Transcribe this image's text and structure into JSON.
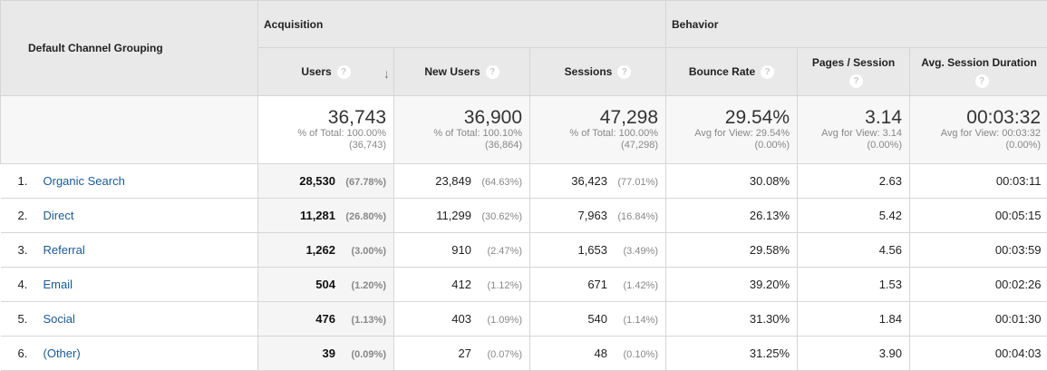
{
  "header": {
    "dimension": "Default Channel Grouping",
    "groups": [
      "Acquisition",
      "Behavior"
    ],
    "metrics": [
      "Users",
      "New Users",
      "Sessions",
      "Bounce Rate",
      "Pages / Session",
      "Avg. Session Duration"
    ],
    "help_icon": "?",
    "sort_icon": "↓"
  },
  "summary": [
    {
      "value": "36,743",
      "line1": "% of Total: 100.00%",
      "line2": "(36,743)"
    },
    {
      "value": "36,900",
      "line1": "% of Total: 100.10%",
      "line2": "(36,864)"
    },
    {
      "value": "47,298",
      "line1": "% of Total: 100.00%",
      "line2": "(47,298)"
    },
    {
      "value": "29.54%",
      "line1": "Avg for View: 29.54%",
      "line2": "(0.00%)"
    },
    {
      "value": "3.14",
      "line1": "Avg for View: 3.14",
      "line2": "(0.00%)"
    },
    {
      "value": "00:03:32",
      "line1": "Avg for View: 00:03:32",
      "line2": "(0.00%)"
    }
  ],
  "rows": [
    {
      "idx": "1.",
      "name": "Organic Search",
      "users": "28,530",
      "users_pct": "(67.78%)",
      "new": "23,849",
      "new_pct": "(64.63%)",
      "sessions": "36,423",
      "sessions_pct": "(77.01%)",
      "bounce": "30.08%",
      "pps": "2.63",
      "dur": "00:03:11"
    },
    {
      "idx": "2.",
      "name": "Direct",
      "users": "11,281",
      "users_pct": "(26.80%)",
      "new": "11,299",
      "new_pct": "(30.62%)",
      "sessions": "7,963",
      "sessions_pct": "(16.84%)",
      "bounce": "26.13%",
      "pps": "5.42",
      "dur": "00:05:15"
    },
    {
      "idx": "3.",
      "name": "Referral",
      "users": "1,262",
      "users_pct": "(3.00%)",
      "new": "910",
      "new_pct": "(2.47%)",
      "sessions": "1,653",
      "sessions_pct": "(3.49%)",
      "bounce": "29.58%",
      "pps": "4.56",
      "dur": "00:03:59"
    },
    {
      "idx": "4.",
      "name": "Email",
      "users": "504",
      "users_pct": "(1.20%)",
      "new": "412",
      "new_pct": "(1.12%)",
      "sessions": "671",
      "sessions_pct": "(1.42%)",
      "bounce": "39.20%",
      "pps": "1.53",
      "dur": "00:02:26"
    },
    {
      "idx": "5.",
      "name": "Social",
      "users": "476",
      "users_pct": "(1.13%)",
      "new": "403",
      "new_pct": "(1.09%)",
      "sessions": "540",
      "sessions_pct": "(1.14%)",
      "bounce": "31.30%",
      "pps": "1.84",
      "dur": "00:01:30"
    },
    {
      "idx": "6.",
      "name": "(Other)",
      "users": "39",
      "users_pct": "(0.09%)",
      "new": "27",
      "new_pct": "(0.07%)",
      "sessions": "48",
      "sessions_pct": "(0.10%)",
      "bounce": "31.25%",
      "pps": "3.90",
      "dur": "00:04:03"
    }
  ]
}
